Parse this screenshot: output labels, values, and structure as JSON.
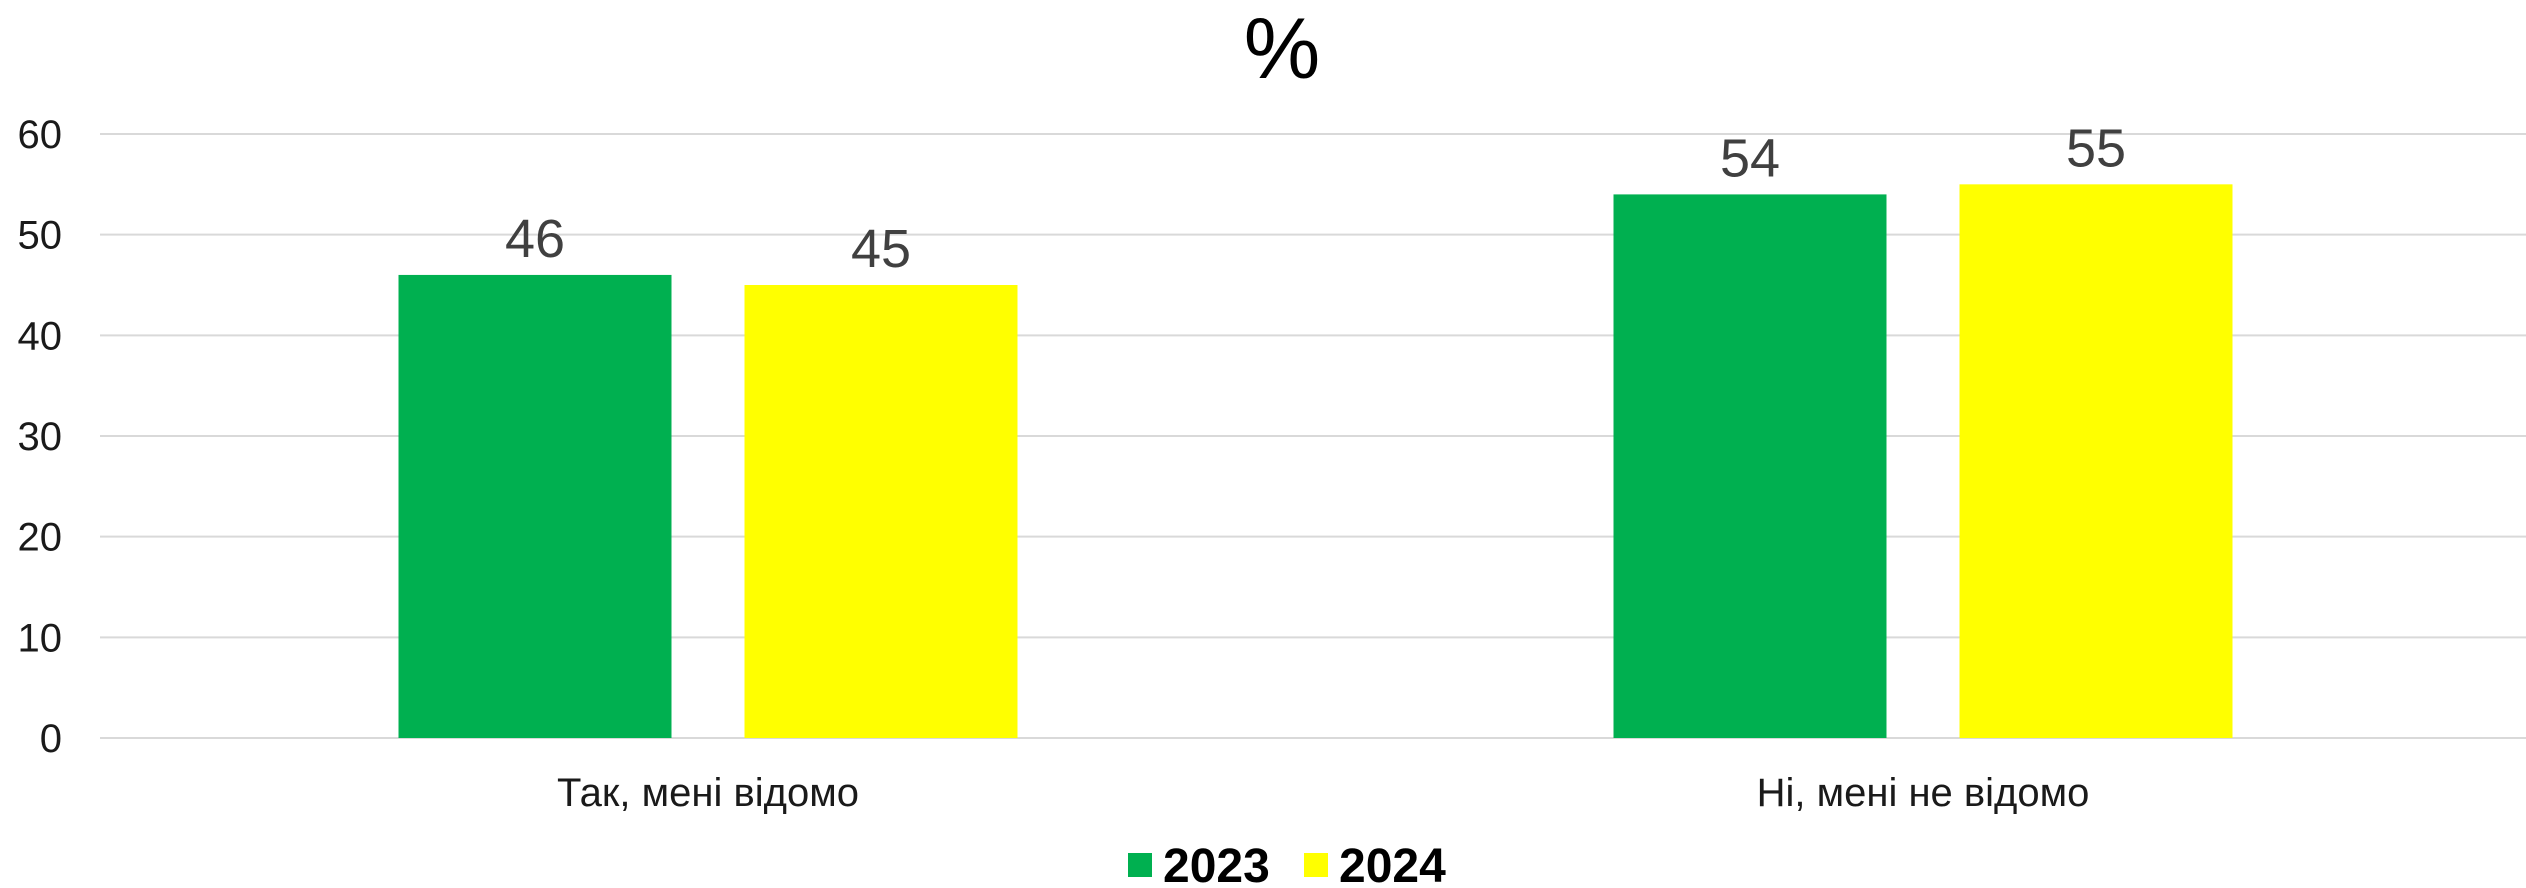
{
  "chart_data": {
    "type": "bar",
    "title": "%",
    "categories": [
      "Так, мені відомо",
      "Ні, мені не відомо"
    ],
    "series": [
      {
        "name": "2023",
        "color": "#00b050",
        "values": [
          46,
          54
        ]
      },
      {
        "name": "2024",
        "color": "#ffff00",
        "values": [
          45,
          55
        ]
      }
    ],
    "ylim": [
      0,
      60
    ],
    "yticks": [
      0,
      10,
      20,
      30,
      40,
      50,
      60
    ],
    "grid": true,
    "legend": "bottom-center",
    "data_labels": true
  }
}
